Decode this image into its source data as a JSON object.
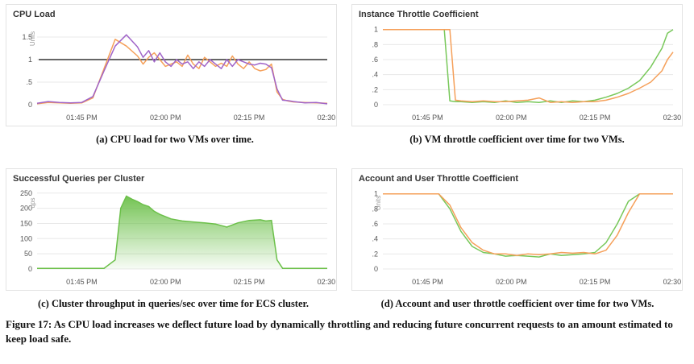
{
  "chart_data": [
    {
      "id": "a",
      "type": "line",
      "title": "CPU Load",
      "ylabel": "Units",
      "xlabel": "",
      "x_ticks": [
        "01:45 PM",
        "02:00 PM",
        "02:15 PM",
        "02:30 PM"
      ],
      "y_ticks": [
        "0",
        ".5",
        "1",
        "1.5"
      ],
      "xlim": [
        -8,
        44
      ],
      "ylim": [
        0,
        1.75
      ],
      "threshold": 1,
      "colors": {
        "series": [
          "#f5a05a",
          "#a064c8"
        ],
        "threshold": "#333333"
      },
      "x": [
        -8,
        -6,
        -4,
        -2,
        0,
        2,
        4,
        6,
        8,
        10,
        11,
        12,
        13,
        14,
        15,
        16,
        17,
        18,
        19,
        20,
        21,
        22,
        23,
        24,
        25,
        26,
        27,
        28,
        29,
        30,
        31,
        32,
        33,
        34,
        35,
        36,
        37,
        38,
        40,
        42,
        44
      ],
      "series": [
        {
          "values": [
            0.02,
            0.05,
            0.04,
            0.03,
            0.04,
            0.15,
            0.8,
            1.45,
            1.3,
            1.08,
            0.9,
            1.05,
            1.15,
            1.0,
            0.85,
            0.9,
            0.95,
            0.85,
            1.1,
            0.9,
            0.8,
            1.05,
            0.95,
            0.85,
            0.92,
            0.85,
            1.08,
            0.9,
            0.8,
            0.95,
            0.8,
            0.75,
            0.78,
            0.9,
            0.28,
            0.12,
            0.08,
            0.06,
            0.05,
            0.04,
            0.03
          ]
        },
        {
          "values": [
            0.03,
            0.07,
            0.05,
            0.04,
            0.05,
            0.18,
            0.75,
            1.3,
            1.55,
            1.28,
            1.05,
            1.2,
            0.95,
            1.15,
            0.95,
            0.85,
            1.0,
            0.9,
            0.95,
            0.8,
            0.95,
            0.85,
            1.0,
            0.9,
            0.8,
            1.0,
            0.85,
            1.0,
            0.95,
            0.9,
            0.88,
            0.92,
            0.9,
            0.82,
            0.35,
            0.1,
            0.09,
            0.07,
            0.04,
            0.05,
            0.02
          ]
        }
      ]
    },
    {
      "id": "b",
      "type": "line",
      "title": "Instance Throttle Coefficient",
      "ylabel": "",
      "xlabel": "",
      "x_ticks": [
        "01:45 PM",
        "02:00 PM",
        "02:15 PM",
        "02:30 PM"
      ],
      "y_ticks": [
        "0",
        ".2",
        ".4",
        ".6",
        ".8",
        "1"
      ],
      "xlim": [
        -8,
        44
      ],
      "ylim": [
        0,
        1.05
      ],
      "colors": {
        "series": [
          "#78c85a",
          "#f5a05a"
        ]
      },
      "x": [
        -8,
        2,
        3,
        4,
        5,
        6,
        8,
        10,
        12,
        14,
        16,
        18,
        20,
        22,
        24,
        26,
        28,
        30,
        32,
        34,
        36,
        38,
        40,
        42,
        43,
        44
      ],
      "series": [
        {
          "values": [
            1,
            1,
            1,
            0.05,
            0.04,
            0.04,
            0.03,
            0.04,
            0.03,
            0.05,
            0.03,
            0.04,
            0.03,
            0.05,
            0.03,
            0.05,
            0.04,
            0.06,
            0.1,
            0.15,
            0.22,
            0.32,
            0.5,
            0.75,
            0.95,
            1.0
          ]
        },
        {
          "values": [
            1,
            1,
            1,
            1,
            0.06,
            0.05,
            0.04,
            0.05,
            0.04,
            0.04,
            0.05,
            0.06,
            0.09,
            0.03,
            0.04,
            0.03,
            0.04,
            0.04,
            0.06,
            0.1,
            0.15,
            0.22,
            0.3,
            0.45,
            0.6,
            0.7
          ]
        }
      ]
    },
    {
      "id": "c",
      "type": "area",
      "title": "Successful Queries per Cluster",
      "ylabel": "qps",
      "xlabel": "",
      "x_ticks": [
        "01:45 PM",
        "02:00 PM",
        "02:15 PM",
        "02:30 PM"
      ],
      "y_ticks": [
        "0",
        "50",
        "100",
        "150",
        "200",
        "250"
      ],
      "xlim": [
        -8,
        44
      ],
      "ylim": [
        0,
        260
      ],
      "colors": {
        "series": [
          "#6cc04a"
        ]
      },
      "x": [
        -8,
        4,
        6,
        7,
        8,
        9,
        10,
        11,
        12,
        13,
        14,
        16,
        18,
        20,
        22,
        24,
        26,
        28,
        30,
        32,
        33,
        34,
        35,
        36,
        38,
        40,
        44
      ],
      "series": [
        {
          "values": [
            2,
            2,
            30,
            200,
            240,
            230,
            222,
            212,
            206,
            190,
            180,
            165,
            158,
            155,
            152,
            148,
            138,
            152,
            160,
            162,
            158,
            160,
            30,
            2,
            2,
            2,
            2
          ]
        }
      ]
    },
    {
      "id": "d",
      "type": "line",
      "title": "Account and User Throttle Coefficient",
      "ylabel": "Units",
      "xlabel": "",
      "x_ticks": [
        "01:45 PM",
        "02:00 PM",
        "02:15 PM",
        "02:30 PM"
      ],
      "y_ticks": [
        "0",
        ".2",
        ".4",
        ".6",
        ".8",
        "1"
      ],
      "xlim": [
        -8,
        44
      ],
      "ylim": [
        0,
        1.05
      ],
      "colors": {
        "series": [
          "#78c85a",
          "#f5a05a"
        ]
      },
      "x": [
        -8,
        2,
        4,
        6,
        8,
        10,
        12,
        14,
        16,
        18,
        20,
        22,
        24,
        26,
        28,
        30,
        32,
        34,
        36,
        38,
        40,
        44
      ],
      "series": [
        {
          "values": [
            1,
            1,
            0.8,
            0.5,
            0.3,
            0.22,
            0.2,
            0.17,
            0.18,
            0.17,
            0.16,
            0.2,
            0.18,
            0.19,
            0.2,
            0.22,
            0.35,
            0.6,
            0.9,
            1.0,
            1.0,
            1.0
          ]
        },
        {
          "values": [
            1,
            1,
            0.85,
            0.55,
            0.35,
            0.25,
            0.2,
            0.2,
            0.18,
            0.2,
            0.19,
            0.2,
            0.22,
            0.21,
            0.22,
            0.2,
            0.25,
            0.45,
            0.75,
            1.0,
            1.0,
            1.0
          ]
        }
      ]
    }
  ],
  "captions": {
    "a": "(a) CPU load for two VMs over time.",
    "b": "(b) VM throttle coefficient over time for two VMs.",
    "c": "(c) Cluster throughput in queries/sec over time for ECS cluster.",
    "d": "(d) Account and user throttle coefficient over time for two VMs."
  },
  "figure_caption": "Figure 17: As CPU load increases we deflect future load by dynamically throttling and reducing future concurrent requests to an amount estimated to keep load safe."
}
